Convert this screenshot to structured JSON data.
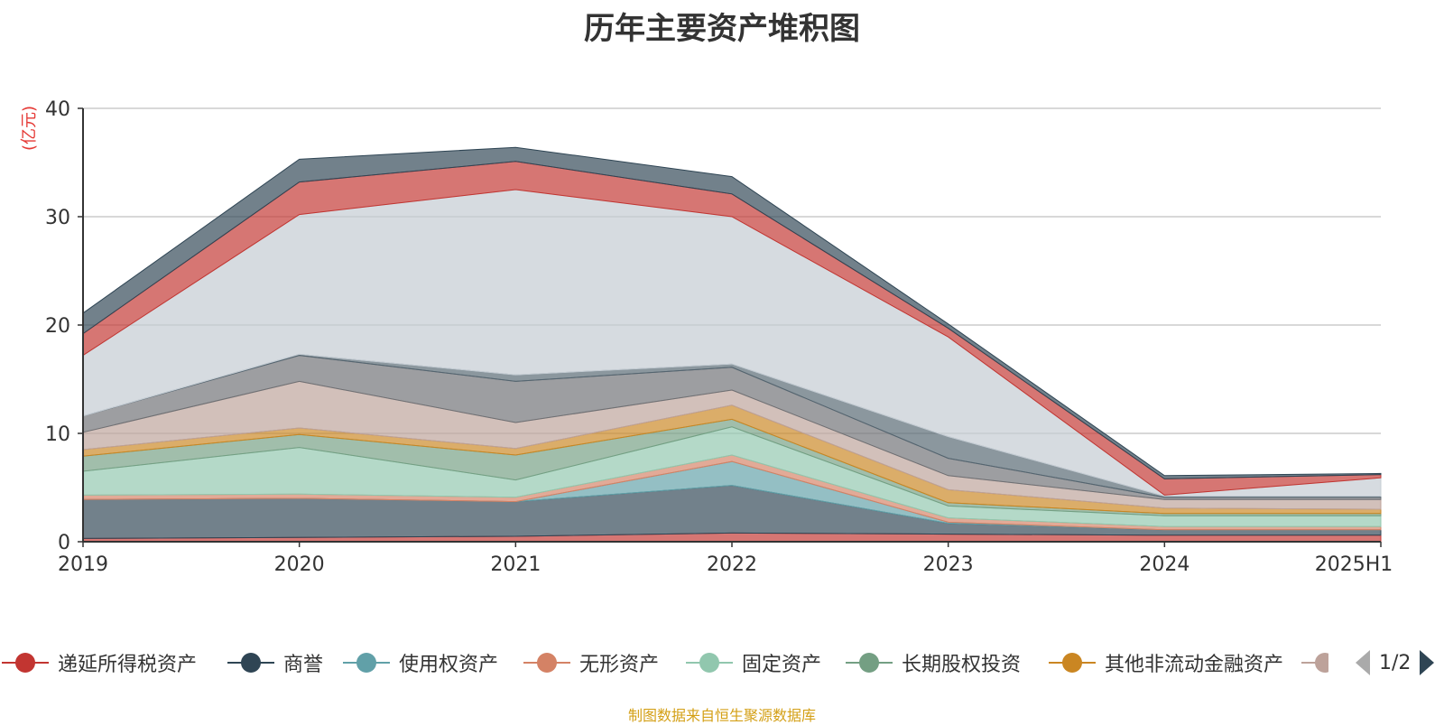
{
  "chart_data": {
    "type": "area",
    "title": "历年主要资产堆积图",
    "ylabel": "(亿元)",
    "xlabel": "",
    "categories": [
      "2019",
      "2020",
      "2021",
      "2022",
      "2023",
      "2024",
      "2025H1"
    ],
    "ylim": [
      0,
      40
    ],
    "yticks": [
      0,
      10,
      20,
      30,
      40
    ],
    "grid": true,
    "stacked": true,
    "legend_position": "bottom",
    "series": [
      {
        "name": "递延所得税资产",
        "color": "#c23531",
        "values": [
          0.3,
          0.4,
          0.5,
          0.8,
          0.7,
          0.6,
          0.6
        ]
      },
      {
        "name": "商誉",
        "color": "#2f4554",
        "values": [
          3.6,
          3.6,
          3.2,
          4.4,
          1.0,
          0.5,
          0.5
        ]
      },
      {
        "name": "使用权资产",
        "color": "#61a0a8",
        "values": [
          0.0,
          0.0,
          0.0,
          2.2,
          0.1,
          0.0,
          0.0
        ]
      },
      {
        "name": "无形资产",
        "color": "#d48265",
        "values": [
          0.4,
          0.4,
          0.4,
          0.6,
          0.4,
          0.3,
          0.3
        ]
      },
      {
        "name": "固定资产",
        "color": "#91c7ae",
        "values": [
          2.2,
          4.3,
          1.6,
          2.6,
          1.1,
          1.0,
          1.0
        ]
      },
      {
        "name": "长期股权投资",
        "color": "#749f83",
        "values": [
          1.4,
          1.2,
          2.3,
          0.7,
          0.3,
          0.2,
          0.2
        ]
      },
      {
        "name": "其他非流动金融资产",
        "color": "#ca8622",
        "values": [
          0.6,
          0.6,
          0.6,
          1.3,
          1.2,
          0.5,
          0.4
        ]
      },
      {
        "color": "#bda29a",
        "values": [
          1.6,
          4.3,
          2.4,
          1.4,
          1.3,
          0.8,
          0.9
        ]
      },
      {
        "color": "#6e7074",
        "values": [
          1.5,
          2.4,
          3.8,
          2.1,
          1.6,
          0.2,
          0.2
        ]
      },
      {
        "color": "#546570",
        "values": [
          0.0,
          0.1,
          0.6,
          0.3,
          2.0,
          0.1,
          0.1
        ]
      },
      {
        "color": "#c4ccd3",
        "values": [
          5.6,
          12.9,
          17.1,
          13.6,
          9.2,
          0.1,
          1.7
        ]
      },
      {
        "color": "#c23531",
        "values": [
          2.0,
          3.0,
          2.6,
          2.1,
          0.8,
          1.5,
          0.3
        ]
      },
      {
        "color": "#2f4554",
        "values": [
          1.9,
          2.1,
          1.3,
          1.6,
          0.4,
          0.3,
          0.1
        ]
      }
    ]
  },
  "legend": {
    "page_indicator": "1/2"
  },
  "source_note": "制图数据来自恒生聚源数据库"
}
